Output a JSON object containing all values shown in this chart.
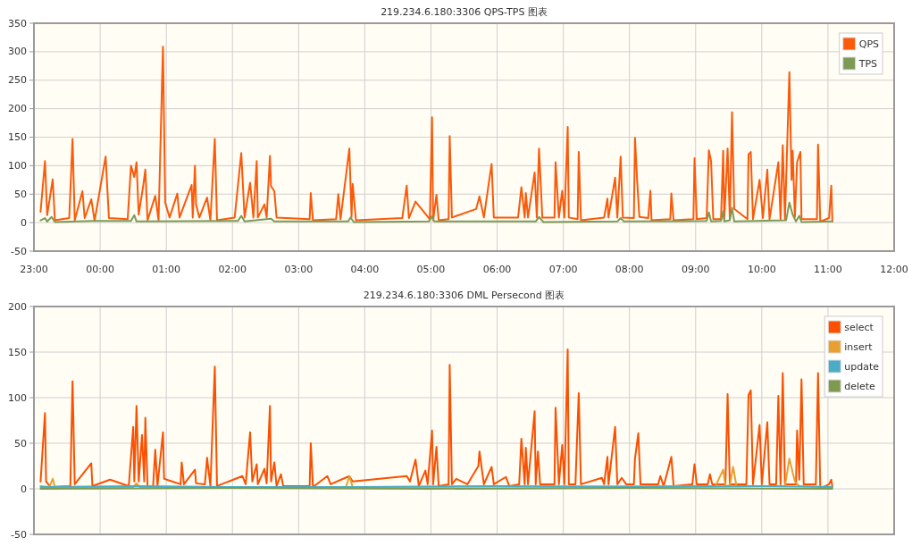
{
  "chart_data": [
    {
      "type": "line",
      "title": "219.234.6.180:3306 QPS-TPS 图表",
      "xlim": [
        "--01-01T23:00",
        "--01-02T12:00"
      ],
      "xticks": [
        {
          "value": "--01-01T23:00",
          "label": "23:00"
        },
        {
          "value": "--01-02T00:00",
          "label": "00:00"
        },
        {
          "value": "--01-02T01:00",
          "label": "01:00"
        },
        {
          "value": "--01-02T02:00",
          "label": "02:00"
        },
        {
          "value": "--01-02T03:00",
          "label": "03:00"
        },
        {
          "value": "--01-02T04:00",
          "label": "04:00"
        },
        {
          "value": "--01-02T05:00",
          "label": "05:00"
        },
        {
          "value": "--01-02T06:00",
          "label": "06:00"
        },
        {
          "value": "--01-02T07:00",
          "label": "07:00"
        },
        {
          "value": "--01-02T08:00",
          "label": "08:00"
        },
        {
          "value": "--01-02T09:00",
          "label": "09:00"
        },
        {
          "value": "--01-02T10:00",
          "label": "10:00"
        },
        {
          "value": "--01-02T11:00",
          "label": "11:00"
        },
        {
          "value": "--01-02T12:00",
          "label": "12:00"
        }
      ],
      "ylim": [
        -50,
        350
      ],
      "yticks": [
        -50,
        0,
        50,
        100,
        150,
        200,
        250,
        300,
        350
      ],
      "grid": true,
      "legend": "top right",
      "series": [
        {
          "name": "QPS",
          "color": "#fa5a0a",
          "x": [
            "--01-01T23:06",
            "--01-01T23:10",
            "--01-01T23:12",
            "--01-01T23:17",
            "--01-01T23:19",
            "--01-01T23:32",
            "--01-01T23:35",
            "--01-01T23:37",
            "--01-01T23:44",
            "--01-01T23:46",
            "--01-01T23:52",
            "--01-01T23:55",
            "--01-02T00:05",
            "--01-02T00:08",
            "--01-02T00:25",
            "--01-02T00:28",
            "--01-02T00:31",
            "--01-02T00:33",
            "--01-02T00:35",
            "--01-02T00:39",
            "--01-02T00:41",
            "--01-02T00:43",
            "--01-02T00:50",
            "--01-02T00:53",
            "--01-02T00:57",
            "--01-02T00:59",
            "--01-02T01:03",
            "--01-02T01:10",
            "--01-02T01:12",
            "--01-02T01:23",
            "--01-02T01:24",
            "--01-02T01:26",
            "--01-02T01:27",
            "--01-02T01:30",
            "--01-02T01:37",
            "--01-02T01:40",
            "--01-02T01:44",
            "--01-02T01:46",
            "--01-02T02:02",
            "--01-02T02:08",
            "--01-02T02:11",
            "--01-02T02:16",
            "--01-02T02:19",
            "--01-02T02:22",
            "--01-02T02:23",
            "--01-02T02:29",
            "--01-02T02:31",
            "--01-02T02:34",
            "--01-02T02:35",
            "--01-02T02:38",
            "--01-02T02:40",
            "--01-02T03:10",
            "--01-02T03:11",
            "--01-02T03:13",
            "--01-02T03:34",
            "--01-02T03:36",
            "--01-02T03:38",
            "--01-02T03:46",
            "--01-02T03:48",
            "--01-02T03:49",
            "--01-02T03:52",
            "--01-02T04:34",
            "--01-02T04:38",
            "--01-02T04:40",
            "--01-02T04:46",
            "--01-02T04:59",
            "--01-02T05:01",
            "--01-02T05:02",
            "--01-02T05:05",
            "--01-02T05:07",
            "--01-02T05:16",
            "--01-02T05:17",
            "--01-02T05:19",
            "--01-02T05:41",
            "--01-02T05:44",
            "--01-02T05:48",
            "--01-02T05:52",
            "--01-02T05:55",
            "--01-02T05:57",
            "--01-02T06:19",
            "--01-02T06:22",
            "--01-02T06:25",
            "--01-02T06:26",
            "--01-02T06:28",
            "--01-02T06:34",
            "--01-02T06:36",
            "--01-02T06:38",
            "--01-02T06:41",
            "--01-02T06:52",
            "--01-02T06:53",
            "--01-02T06:56",
            "--01-02T06:59",
            "--01-02T07:01",
            "--01-02T07:04",
            "--01-02T07:05",
            "--01-02T07:13",
            "--01-02T07:14",
            "--01-02T07:16",
            "--01-02T07:37",
            "--01-02T07:40",
            "--01-02T07:41",
            "--01-02T07:47",
            "--01-02T07:49",
            "--01-02T07:52",
            "--01-02T07:54",
            "--01-02T08:04",
            "--01-02T08:05",
            "--01-02T08:07",
            "--01-02T08:09",
            "--01-02T08:17",
            "--01-02T08:19",
            "--01-02T08:20",
            "--01-02T08:37",
            "--01-02T08:38",
            "--01-02T08:40",
            "--01-02T08:58",
            "--01-02T08:59",
            "--01-02T09:01",
            "--01-02T09:10",
            "--01-02T09:12",
            "--01-02T09:14",
            "--01-02T09:16",
            "--01-02T09:23",
            "--01-02T09:25",
            "--01-02T09:26",
            "--01-02T09:29",
            "--01-02T09:31",
            "--01-02T09:33",
            "--01-02T09:35",
            "--01-02T09:47",
            "--01-02T09:48",
            "--01-02T09:50",
            "--01-02T09:52",
            "--01-02T09:58",
            "--01-02T10:01",
            "--01-02T10:05",
            "--01-02T10:07",
            "--01-02T10:15",
            "--01-02T10:17",
            "--01-02T10:19",
            "--01-02T10:21",
            "--01-02T10:25",
            "--01-02T10:27",
            "--01-02T10:28",
            "--01-02T10:30",
            "--01-02T10:32",
            "--01-02T10:35",
            "--01-02T10:36",
            "--01-02T10:50",
            "--01-02T10:51",
            "--01-02T10:53",
            "--01-02T11:01",
            "--01-02T11:03",
            "--01-02T11:04"
          ],
          "values": [
            19,
            108,
            13,
            76,
            4,
            8,
            147,
            4,
            55,
            8,
            41,
            3,
            116,
            8,
            6,
            100,
            80,
            106,
            14,
            64,
            93,
            4,
            47,
            4,
            309,
            35,
            9,
            51,
            9,
            66,
            9,
            100,
            32,
            9,
            44,
            4,
            147,
            4,
            9,
            122,
            9,
            70,
            9,
            108,
            9,
            32,
            9,
            117,
            64,
            55,
            9,
            6,
            52,
            4,
            6,
            50,
            6,
            130,
            10,
            68,
            4,
            8,
            65,
            8,
            37,
            6,
            185,
            4,
            49,
            4,
            6,
            152,
            9,
            24,
            46,
            9,
            63,
            103,
            9,
            9,
            62,
            9,
            52,
            9,
            88,
            9,
            130,
            9,
            9,
            106,
            9,
            56,
            9,
            168,
            9,
            6,
            124,
            4,
            9,
            42,
            9,
            79,
            9,
            116,
            9,
            8,
            149,
            73,
            10,
            8,
            56,
            4,
            6,
            51,
            4,
            6,
            113,
            6,
            8,
            127,
            108,
            6,
            6,
            126,
            6,
            130,
            6,
            194,
            24,
            6,
            120,
            124,
            6,
            75,
            8,
            93,
            6,
            106,
            6,
            136,
            6,
            264,
            75,
            126,
            10,
            106,
            124,
            6,
            6,
            137,
            2,
            8,
            65,
            2
          ]
        },
        {
          "name": "TPS",
          "color": "#7d9a55",
          "x": [
            "--01-01T23:06",
            "--01-01T23:10",
            "--01-01T23:12",
            "--01-01T23:16",
            "--01-01T23:19",
            "--01-01T23:53",
            "--01-02T00:28",
            "--01-02T00:31",
            "--01-02T00:33",
            "--01-02T02:05",
            "--01-02T02:08",
            "--01-02T02:11",
            "--01-02T02:35",
            "--01-02T02:38",
            "--01-02T03:45",
            "--01-02T03:47",
            "--01-02T03:50",
            "--01-02T04:58",
            "--01-02T05:01",
            "--01-02T05:03",
            "--01-02T06:35",
            "--01-02T06:38",
            "--01-02T06:42",
            "--01-02T07:49",
            "--01-02T07:52",
            "--01-02T07:55",
            "--01-02T09:10",
            "--01-02T09:12",
            "--01-02T09:14",
            "--01-02T09:23",
            "--01-02T09:25",
            "--01-02T09:26",
            "--01-02T09:31",
            "--01-02T09:33",
            "--01-02T09:35",
            "--01-02T10:22",
            "--01-02T10:25",
            "--01-02T10:28",
            "--01-02T10:31",
            "--01-02T10:34",
            "--01-02T10:36",
            "--01-02T11:04"
          ],
          "values": [
            4,
            8,
            2,
            10,
            1,
            3,
            3,
            13,
            2,
            3,
            12,
            2,
            7,
            2,
            2,
            9,
            1,
            2,
            11,
            2,
            2,
            10,
            1,
            2,
            8,
            2,
            3,
            18,
            2,
            3,
            20,
            2,
            4,
            26,
            2,
            4,
            35,
            14,
            2,
            12,
            1,
            2
          ]
        }
      ]
    },
    {
      "type": "line",
      "title": "219.234.6.180:3306 DML Persecond 图表",
      "xlim": [
        "--01-01T23:00",
        "--01-02T12:00"
      ],
      "xticks": [
        {
          "value": "--01-01T23:00",
          "label": null
        },
        {
          "value": "--01-02T00:00",
          "label": null
        },
        {
          "value": "--01-02T01:00",
          "label": null
        },
        {
          "value": "--01-02T02:00",
          "label": null
        },
        {
          "value": "--01-02T03:00",
          "label": null
        },
        {
          "value": "--01-02T04:00",
          "label": null
        },
        {
          "value": "--01-02T05:00",
          "label": null
        },
        {
          "value": "--01-02T06:00",
          "label": null
        },
        {
          "value": "--01-02T07:00",
          "label": null
        },
        {
          "value": "--01-02T08:00",
          "label": null
        },
        {
          "value": "--01-02T09:00",
          "label": null
        },
        {
          "value": "--01-02T10:00",
          "label": null
        },
        {
          "value": "--01-02T11:00",
          "label": null
        },
        {
          "value": "--01-02T12:00",
          "label": null
        }
      ],
      "tick_labels": "y",
      "ylim": [
        -50,
        200
      ],
      "yticks": [
        -50,
        0,
        50,
        100,
        150,
        200
      ],
      "grid": true,
      "legend": "top right",
      "series": [
        {
          "name": "select",
          "color": "#fa5000",
          "x": [
            "--01-01T23:06",
            "--01-01T23:10",
            "--01-01T23:11",
            "--01-01T23:15",
            "--01-01T23:33",
            "--01-01T23:35",
            "--01-01T23:37",
            "--01-01T23:52",
            "--01-01T23:53",
            "--01-02T00:09",
            "--01-02T00:26",
            "--01-02T00:30",
            "--01-02T00:31",
            "--01-02T00:33",
            "--01-02T00:35",
            "--01-02T00:38",
            "--01-02T00:40",
            "--01-02T00:41",
            "--01-02T00:43",
            "--01-02T00:48",
            "--01-02T00:50",
            "--01-02T00:52",
            "--01-02T00:57",
            "--01-02T00:58",
            "--01-02T01:13",
            "--01-02T01:14",
            "--01-02T01:16",
            "--01-02T01:26",
            "--01-02T01:27",
            "--01-02T01:35",
            "--01-02T01:37",
            "--01-02T01:40",
            "--01-02T01:44",
            "--01-02T01:46",
            "--01-02T02:09",
            "--01-02T02:12",
            "--01-02T02:16",
            "--01-02T02:18",
            "--01-02T02:22",
            "--01-02T02:23",
            "--01-02T02:29",
            "--01-02T02:31",
            "--01-02T02:34",
            "--01-02T02:35",
            "--01-02T02:38",
            "--01-02T02:40",
            "--01-02T02:44",
            "--01-02T02:46",
            "--01-02T03:10",
            "--01-02T03:11",
            "--01-02T03:13",
            "--01-02T03:26",
            "--01-02T03:29",
            "--01-02T03:46",
            "--01-02T03:49",
            "--01-02T04:38",
            "--01-02T04:41",
            "--01-02T04:46",
            "--01-02T04:49",
            "--01-02T04:55",
            "--01-02T04:57",
            "--01-02T05:01",
            "--01-02T05:02",
            "--01-02T05:05",
            "--01-02T05:07",
            "--01-02T05:16",
            "--01-02T05:17",
            "--01-02T05:19",
            "--01-02T05:23",
            "--01-02T05:33",
            "--01-02T05:43",
            "--01-02T05:44",
            "--01-02T05:48",
            "--01-02T05:55",
            "--01-02T05:57",
            "--01-02T06:08",
            "--01-02T06:11",
            "--01-02T06:20",
            "--01-02T06:22",
            "--01-02T06:25",
            "--01-02T06:26",
            "--01-02T06:28",
            "--01-02T06:34",
            "--01-02T06:35",
            "--01-02T06:37",
            "--01-02T06:39",
            "--01-02T06:52",
            "--01-02T06:53",
            "--01-02T06:56",
            "--01-02T06:59",
            "--01-02T07:01",
            "--01-02T07:04",
            "--01-02T07:05",
            "--01-02T07:11",
            "--01-02T07:14",
            "--01-02T07:16",
            "--01-02T07:35",
            "--01-02T07:37",
            "--01-02T07:40",
            "--01-02T07:41",
            "--01-02T07:47",
            "--01-02T07:49",
            "--01-02T07:53",
            "--01-02T07:57",
            "--01-02T08:04",
            "--01-02T08:05",
            "--01-02T08:08",
            "--01-02T08:10",
            "--01-02T08:26",
            "--01-02T08:28",
            "--01-02T08:31",
            "--01-02T08:38",
            "--01-02T08:40",
            "--01-02T08:57",
            "--01-02T08:59",
            "--01-02T09:01",
            "--01-02T09:11",
            "--01-02T09:13",
            "--01-02T09:15",
            "--01-02T09:27",
            "--01-02T09:29",
            "--01-02T09:31",
            "--01-02T09:46",
            "--01-02T09:48",
            "--01-02T09:50",
            "--01-02T09:52",
            "--01-02T09:58",
            "--01-02T10:00",
            "--01-02T10:05",
            "--01-02T10:07",
            "--01-02T10:13",
            "--01-02T10:15",
            "--01-02T10:17",
            "--01-02T10:19",
            "--01-02T10:21",
            "--01-02T10:31",
            "--01-02T10:32",
            "--01-02T10:34",
            "--01-02T10:36",
            "--01-02T10:38",
            "--01-02T10:49",
            "--01-02T10:51",
            "--01-02T10:53",
            "--01-02T11:01",
            "--01-02T11:03",
            "--01-02T11:04"
          ],
          "values": [
            8,
            83,
            8,
            2,
            3,
            118,
            5,
            28,
            3,
            10,
            3,
            68,
            8,
            91,
            8,
            59,
            8,
            78,
            3,
            2,
            43,
            3,
            62,
            11,
            5,
            29,
            5,
            21,
            6,
            5,
            34,
            3,
            134,
            3,
            14,
            5,
            62,
            8,
            27,
            5,
            22,
            6,
            91,
            8,
            29,
            3,
            16,
            3,
            3,
            50,
            2,
            14,
            5,
            14,
            8,
            14,
            8,
            32,
            3,
            20,
            5,
            64,
            5,
            46,
            3,
            5,
            136,
            5,
            11,
            5,
            25,
            41,
            5,
            24,
            5,
            13,
            3,
            5,
            55,
            5,
            45,
            5,
            85,
            5,
            41,
            5,
            5,
            89,
            5,
            48,
            5,
            153,
            5,
            5,
            105,
            5,
            12,
            5,
            35,
            5,
            68,
            5,
            12,
            5,
            5,
            33,
            61,
            5,
            5,
            14,
            3,
            35,
            3,
            5,
            27,
            5,
            5,
            16,
            5,
            5,
            104,
            5,
            5,
            103,
            108,
            5,
            70,
            5,
            73,
            5,
            5,
            102,
            5,
            127,
            5,
            5,
            64,
            10,
            120,
            5,
            5,
            127,
            0,
            5,
            10,
            2
          ]
        },
        {
          "name": "insert",
          "color": "#e8a030",
          "x": [
            "--01-01T23:06",
            "--01-01T23:14",
            "--01-01T23:17",
            "--01-01T23:19",
            "--01-02T00:30",
            "--01-02T00:33",
            "--01-02T00:36",
            "--01-02T03:43",
            "--01-02T03:46",
            "--01-02T03:49",
            "--01-02T09:18",
            "--01-02T09:25",
            "--01-02T09:27",
            "--01-02T09:31",
            "--01-02T09:34",
            "--01-02T09:37",
            "--01-02T10:21",
            "--01-02T10:25",
            "--01-02T10:30",
            "--01-02T10:34",
            "--01-02T11:04"
          ],
          "values": [
            3,
            2,
            11,
            2,
            2,
            6,
            2,
            2,
            14,
            2,
            3,
            21,
            3,
            4,
            24,
            3,
            3,
            33,
            8,
            3,
            2
          ]
        },
        {
          "name": "update",
          "color": "#4aacc5",
          "x": [
            "--01-01T23:06",
            "--01-02T00:33",
            "--01-02T02:00",
            "--01-02T04:00",
            "--01-02T06:00",
            "--01-02T08:00",
            "--01-02T10:00",
            "--01-02T11:04"
          ],
          "values": [
            2,
            3,
            2,
            2,
            3,
            2,
            3,
            2
          ]
        },
        {
          "name": "delete",
          "color": "#7f9a4f",
          "x": [
            "--01-01T23:06",
            "--01-02T02:00",
            "--01-02T05:00",
            "--01-02T08:00",
            "--01-02T11:04"
          ],
          "values": [
            0,
            1,
            0,
            1,
            0
          ]
        }
      ]
    }
  ]
}
